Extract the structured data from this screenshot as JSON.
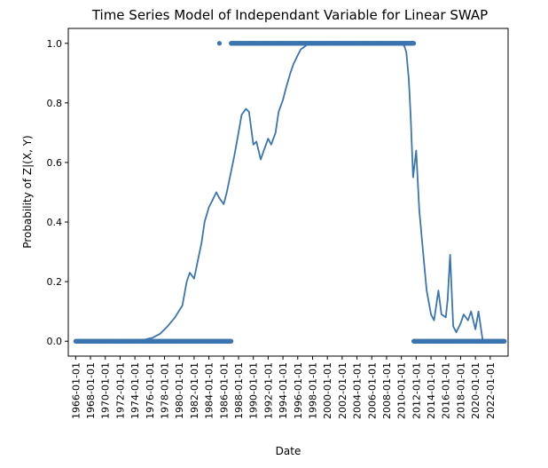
{
  "chart_data": {
    "type": "line",
    "title": "Time Series Model of Independant Variable for Linear SWAP",
    "xlabel": "Date",
    "ylabel": "Probability of Z|(X, Y)",
    "ylim": [
      -0.05,
      1.05
    ],
    "xlim": [
      "1965-01-01",
      "2024-06-01"
    ],
    "y_ticks": [
      0.0,
      0.2,
      0.4,
      0.6,
      0.8,
      1.0
    ],
    "y_tick_labels": [
      "0.0",
      "0.2",
      "0.4",
      "0.6",
      "0.8",
      "1.0"
    ],
    "x_ticks": [
      "1966-01-01",
      "1968-01-01",
      "1970-01-01",
      "1972-01-01",
      "1974-01-01",
      "1976-01-01",
      "1978-01-01",
      "1980-01-01",
      "1982-01-01",
      "1984-01-01",
      "1986-01-01",
      "1988-01-01",
      "1990-01-01",
      "1992-01-01",
      "1994-01-01",
      "1996-01-01",
      "1998-01-01",
      "2000-01-01",
      "2002-01-01",
      "2004-01-01",
      "2006-01-01",
      "2008-01-01",
      "2010-01-01",
      "2012-01-01",
      "2014-01-01",
      "2016-01-01",
      "2018-01-01",
      "2020-01-01",
      "2022-01-01"
    ],
    "grid": false,
    "colors": {
      "line": "#3b75af",
      "points": "#3b75af"
    },
    "series": [
      {
        "type": "line",
        "x": [
          "1966-01-01",
          "1970-01-01",
          "1972-01-01",
          "1974-01-01",
          "1975-06-01",
          "1976-06-01",
          "1977-06-01",
          "1978-06-01",
          "1979-06-01",
          "1980-06-01",
          "1981-01-01",
          "1981-06-01",
          "1982-01-01",
          "1982-06-01",
          "1983-01-01",
          "1983-06-01",
          "1984-01-01",
          "1984-06-01",
          "1985-01-01",
          "1985-06-01",
          "1986-01-01",
          "1986-06-01",
          "1987-01-01",
          "1987-06-01",
          "1988-01-01",
          "1988-06-01",
          "1989-01-01",
          "1989-06-01",
          "1990-01-01",
          "1990-06-01",
          "1991-01-01",
          "1991-06-01",
          "1992-01-01",
          "1992-06-01",
          "1993-01-01",
          "1993-06-01",
          "1994-01-01",
          "1994-06-01",
          "1995-01-01",
          "1995-06-01",
          "1996-01-01",
          "1996-06-01",
          "1997-01-01",
          "1997-06-01",
          "1998-01-01",
          "1998-06-01",
          "1999-01-01",
          "1999-06-01",
          "2000-01-01",
          "2004-01-01",
          "2008-01-01",
          "2009-01-01",
          "2009-06-01",
          "2010-01-01",
          "2010-06-01",
          "2010-09-01",
          "2011-01-01",
          "2011-04-01",
          "2011-08-01",
          "2012-01-01",
          "2012-06-01",
          "2013-01-01",
          "2013-06-01",
          "2014-01-01",
          "2014-06-01",
          "2015-01-01",
          "2015-06-01",
          "2016-01-01",
          "2016-04-01",
          "2016-08-01",
          "2017-01-01",
          "2017-06-01",
          "2018-01-01",
          "2018-06-01",
          "2019-01-01",
          "2019-06-01",
          "2020-01-01",
          "2020-06-01",
          "2021-01-01"
        ],
        "y": [
          0.0,
          0.0,
          0.001,
          0.003,
          0.006,
          0.012,
          0.025,
          0.05,
          0.08,
          0.12,
          0.2,
          0.23,
          0.21,
          0.26,
          0.33,
          0.4,
          0.45,
          0.47,
          0.5,
          0.48,
          0.46,
          0.5,
          0.57,
          0.62,
          0.7,
          0.76,
          0.78,
          0.77,
          0.66,
          0.67,
          0.61,
          0.64,
          0.68,
          0.66,
          0.7,
          0.77,
          0.81,
          0.85,
          0.9,
          0.93,
          0.96,
          0.98,
          0.99,
          1.0,
          1.0,
          1.0,
          1.0,
          1.0,
          1.0,
          1.0,
          1.0,
          1.0,
          1.0,
          1.0,
          0.99,
          0.97,
          0.88,
          0.76,
          0.55,
          0.64,
          0.44,
          0.28,
          0.17,
          0.09,
          0.07,
          0.17,
          0.09,
          0.08,
          0.14,
          0.29,
          0.05,
          0.03,
          0.06,
          0.09,
          0.07,
          0.1,
          0.04,
          0.1,
          0.0
        ]
      },
      {
        "type": "points",
        "x_start": "1966-01-01",
        "x_end": "1986-01-01",
        "step_months": 1,
        "y": 0.0
      },
      {
        "type": "points",
        "x_start": "1986-02-01",
        "x_end": "1987-01-01",
        "step_months": 1,
        "y": 0.0
      },
      {
        "type": "points",
        "x": [
          "1985-06-01"
        ],
        "y": 1.0
      },
      {
        "type": "points",
        "x_start": "1987-01-01",
        "x_end": "2011-09-01",
        "step_months": 1,
        "y": 1.0
      },
      {
        "type": "points",
        "x_start": "2011-09-01",
        "x_end": "2023-12-01",
        "step_months": 1,
        "y": 0.0
      }
    ]
  }
}
